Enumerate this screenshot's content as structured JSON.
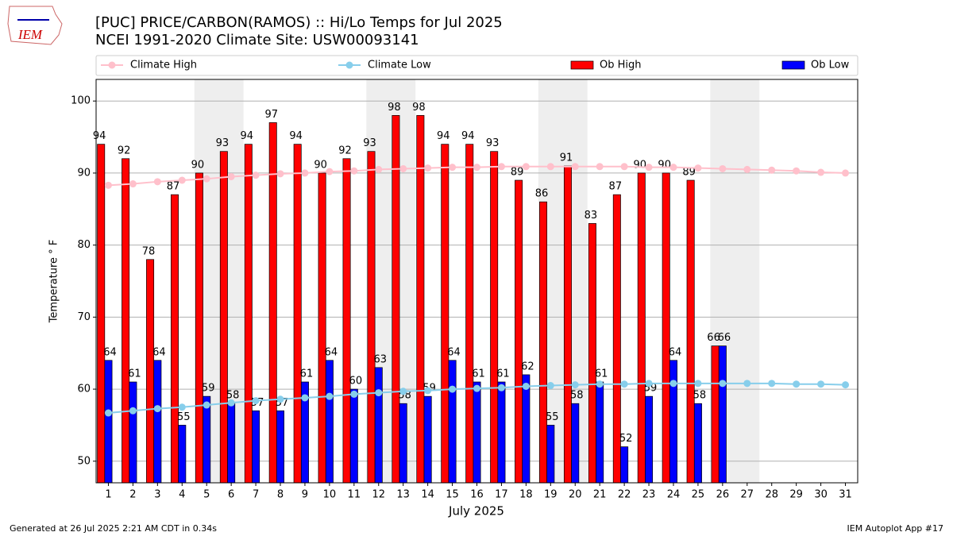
{
  "chart_data": {
    "type": "bar",
    "title": "[PUC] PRICE/CARBON(RAMOS) :: Hi/Lo Temps for Jul 2025",
    "subtitle": "NCEI 1991-2020 Climate Site: USW00093141",
    "logo_text": "IEM",
    "xlabel": "July 2025",
    "ylabel": "Temperature ° F",
    "footer_left": "Generated at 26 Jul 2025 2:21 AM CDT in 0.34s",
    "footer_right": "IEM Autoplot App #17",
    "x": [
      1,
      2,
      3,
      4,
      5,
      6,
      7,
      8,
      9,
      10,
      11,
      12,
      13,
      14,
      15,
      16,
      17,
      18,
      19,
      20,
      21,
      22,
      23,
      24,
      25,
      26,
      27,
      28,
      29,
      30,
      31
    ],
    "xlim": [
      0.5,
      31.5
    ],
    "xticks": [
      1,
      2,
      3,
      4,
      5,
      6,
      7,
      8,
      9,
      10,
      11,
      12,
      13,
      14,
      15,
      16,
      17,
      18,
      19,
      20,
      21,
      22,
      23,
      24,
      25,
      26,
      27,
      28,
      29,
      30,
      31
    ],
    "ylim": [
      47,
      103
    ],
    "yticks": [
      50,
      60,
      70,
      80,
      90,
      100
    ],
    "grid": true,
    "shaded": [
      [
        4.5,
        6.5
      ],
      [
        11.5,
        13.5
      ],
      [
        18.5,
        20.5
      ],
      [
        25.5,
        27.5
      ]
    ],
    "series": [
      {
        "name": "Climate High",
        "kind": "line",
        "color": "#ffc0cb",
        "values": [
          88.3,
          88.5,
          88.8,
          89.0,
          89.2,
          89.5,
          89.7,
          89.9,
          90.0,
          90.2,
          90.3,
          90.5,
          90.6,
          90.7,
          90.8,
          90.8,
          90.9,
          90.9,
          90.9,
          90.9,
          90.9,
          90.9,
          90.8,
          90.8,
          90.7,
          90.6,
          90.5,
          90.4,
          90.3,
          90.1,
          90.0
        ]
      },
      {
        "name": "Climate Low",
        "kind": "line",
        "color": "#87ceeb",
        "values": [
          56.7,
          57.0,
          57.3,
          57.5,
          57.8,
          58.1,
          58.4,
          58.6,
          58.8,
          59.0,
          59.3,
          59.5,
          59.7,
          59.8,
          60.0,
          60.1,
          60.2,
          60.4,
          60.5,
          60.6,
          60.7,
          60.7,
          60.8,
          60.8,
          60.8,
          60.8,
          60.8,
          60.8,
          60.7,
          60.7,
          60.6
        ]
      },
      {
        "name": "Ob High",
        "kind": "bar",
        "color": "#ff0000",
        "values": [
          94,
          92,
          78,
          87,
          90,
          93,
          94,
          97,
          94,
          90,
          92,
          93,
          98,
          98,
          94,
          94,
          93,
          89,
          86,
          91,
          83,
          87,
          90,
          90,
          89,
          66,
          null,
          null,
          null,
          null,
          null
        ]
      },
      {
        "name": "Ob Low",
        "kind": "bar",
        "color": "#0000ff",
        "values": [
          64,
          61,
          64,
          55,
          59,
          58,
          57,
          57,
          61,
          64,
          60,
          63,
          58,
          59,
          64,
          61,
          61,
          62,
          55,
          58,
          61,
          52,
          59,
          64,
          58,
          66,
          null,
          null,
          null,
          null,
          null
        ]
      }
    ]
  }
}
